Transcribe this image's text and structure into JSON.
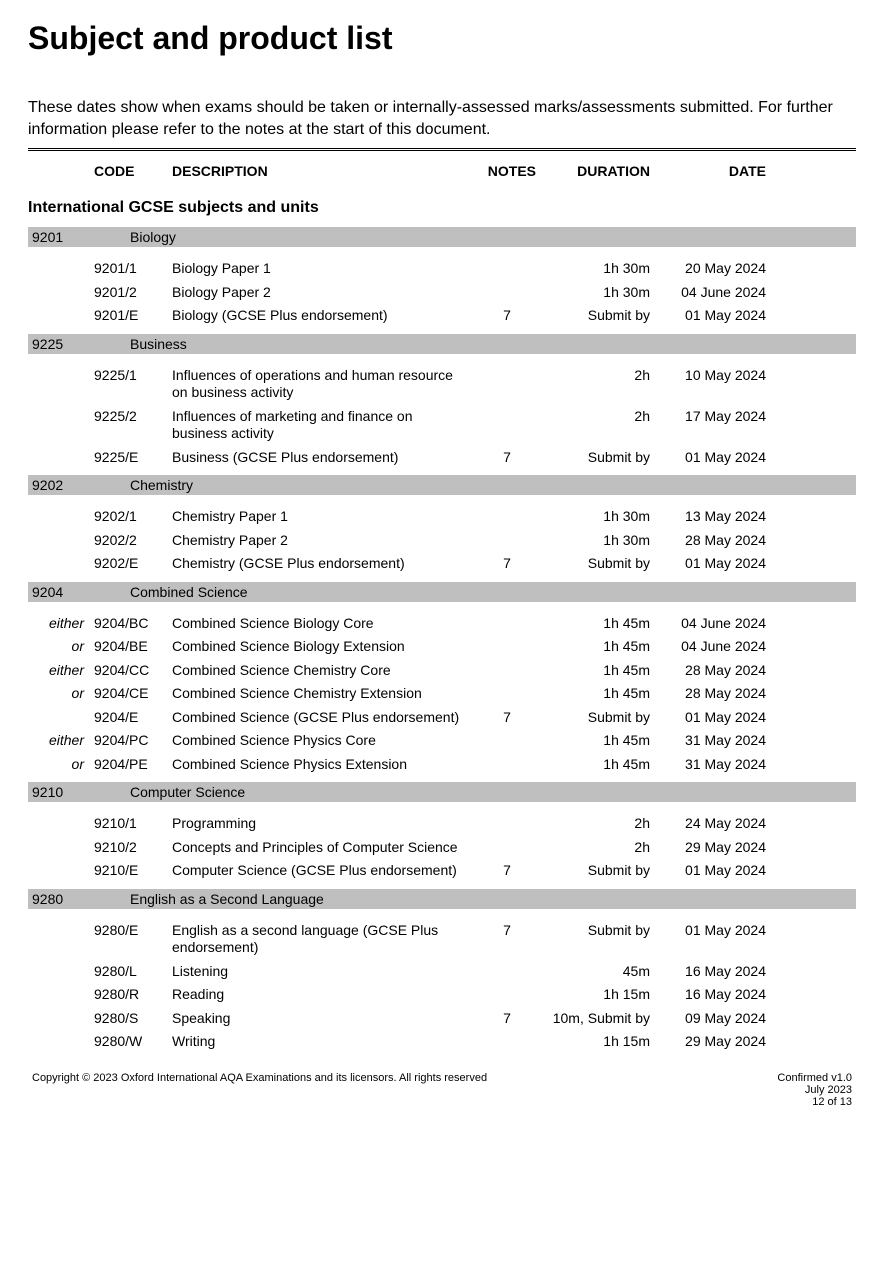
{
  "title": "Subject and product list",
  "intro": "These dates show when exams should be taken or internally-assessed marks/assessments submitted.  For further information please refer to the notes at the start of this document.",
  "columns": {
    "code": "CODE",
    "description": "DESCRIPTION",
    "notes": "NOTES",
    "duration": "DURATION",
    "date": "DATE"
  },
  "section_heading": "International GCSE subjects and units",
  "subjects": [
    {
      "code": "9201",
      "name": "Biology",
      "units": [
        {
          "qual": "",
          "code": "9201/1",
          "desc": "Biology Paper 1",
          "notes": "",
          "dur": "1h 30m",
          "date": "20 May 2024"
        },
        {
          "qual": "",
          "code": "9201/2",
          "desc": "Biology Paper 2",
          "notes": "",
          "dur": "1h 30m",
          "date": "04 June 2024"
        },
        {
          "qual": "",
          "code": "9201/E",
          "desc": "Biology (GCSE Plus endorsement)",
          "notes": "7",
          "dur": "Submit by",
          "date": "01 May 2024"
        }
      ]
    },
    {
      "code": "9225",
      "name": "Business",
      "units": [
        {
          "qual": "",
          "code": "9225/1",
          "desc": "Influences of operations and human resource on business activity",
          "notes": "",
          "dur": "2h",
          "date": "10 May 2024"
        },
        {
          "qual": "",
          "code": "9225/2",
          "desc": "Influences of marketing and finance on business activity",
          "notes": "",
          "dur": "2h",
          "date": "17 May 2024"
        },
        {
          "qual": "",
          "code": "9225/E",
          "desc": "Business (GCSE Plus endorsement)",
          "notes": "7",
          "dur": "Submit by",
          "date": "01 May 2024"
        }
      ]
    },
    {
      "code": "9202",
      "name": "Chemistry",
      "units": [
        {
          "qual": "",
          "code": "9202/1",
          "desc": "Chemistry Paper 1",
          "notes": "",
          "dur": "1h 30m",
          "date": "13 May 2024"
        },
        {
          "qual": "",
          "code": "9202/2",
          "desc": "Chemistry Paper 2",
          "notes": "",
          "dur": "1h 30m",
          "date": "28 May 2024"
        },
        {
          "qual": "",
          "code": "9202/E",
          "desc": "Chemistry (GCSE Plus endorsement)",
          "notes": "7",
          "dur": "Submit by",
          "date": "01 May 2024"
        }
      ]
    },
    {
      "code": "9204",
      "name": "Combined Science",
      "units": [
        {
          "qual": "either",
          "code": "9204/BC",
          "desc": "Combined Science Biology Core",
          "notes": "",
          "dur": "1h 45m",
          "date": "04 June 2024"
        },
        {
          "qual": "or",
          "code": "9204/BE",
          "desc": "Combined Science Biology Extension",
          "notes": "",
          "dur": "1h 45m",
          "date": "04 June 2024"
        },
        {
          "qual": "either",
          "code": "9204/CC",
          "desc": "Combined Science Chemistry Core",
          "notes": "",
          "dur": "1h 45m",
          "date": "28 May 2024"
        },
        {
          "qual": "or",
          "code": "9204/CE",
          "desc": "Combined Science Chemistry Extension",
          "notes": "",
          "dur": "1h 45m",
          "date": "28 May 2024"
        },
        {
          "qual": "",
          "code": "9204/E",
          "desc": "Combined Science (GCSE Plus endorsement)",
          "notes": "7",
          "dur": "Submit by",
          "date": "01 May 2024"
        },
        {
          "qual": "either",
          "code": "9204/PC",
          "desc": "Combined Science Physics Core",
          "notes": "",
          "dur": "1h 45m",
          "date": "31 May 2024"
        },
        {
          "qual": "or",
          "code": "9204/PE",
          "desc": "Combined Science Physics Extension",
          "notes": "",
          "dur": "1h 45m",
          "date": "31 May 2024"
        }
      ]
    },
    {
      "code": "9210",
      "name": "Computer Science",
      "units": [
        {
          "qual": "",
          "code": "9210/1",
          "desc": "Programming",
          "notes": "",
          "dur": "2h",
          "date": "24 May 2024"
        },
        {
          "qual": "",
          "code": "9210/2",
          "desc": "Concepts and Principles of Computer Science",
          "notes": "",
          "dur": "2h",
          "date": "29 May 2024"
        },
        {
          "qual": "",
          "code": "9210/E",
          "desc": "Computer Science (GCSE Plus endorsement)",
          "notes": "7",
          "dur": "Submit by",
          "date": "01 May 2024"
        }
      ]
    },
    {
      "code": "9280",
      "name": "English as a Second Language",
      "units": [
        {
          "qual": "",
          "code": "9280/E",
          "desc": "English as a second language (GCSE Plus endorsement)",
          "notes": "7",
          "dur": "Submit by",
          "date": "01 May 2024"
        },
        {
          "qual": "",
          "code": "9280/L",
          "desc": "Listening",
          "notes": "",
          "dur": "45m",
          "date": "16 May 2024"
        },
        {
          "qual": "",
          "code": "9280/R",
          "desc": "Reading",
          "notes": "",
          "dur": "1h 15m",
          "date": "16 May 2024"
        },
        {
          "qual": "",
          "code": "9280/S",
          "desc": "Speaking",
          "notes": "7",
          "dur": "10m, Submit by",
          "date": "09 May 2024"
        },
        {
          "qual": "",
          "code": "9280/W",
          "desc": "Writing",
          "notes": "",
          "dur": "1h 15m",
          "date": "29 May 2024"
        }
      ]
    }
  ],
  "footer": {
    "copyright": "Copyright © 2023 Oxford International AQA Examinations and its licensors. All rights reserved",
    "version": "Confirmed v1.0",
    "issued": "July 2023",
    "page": "12 of 13"
  }
}
